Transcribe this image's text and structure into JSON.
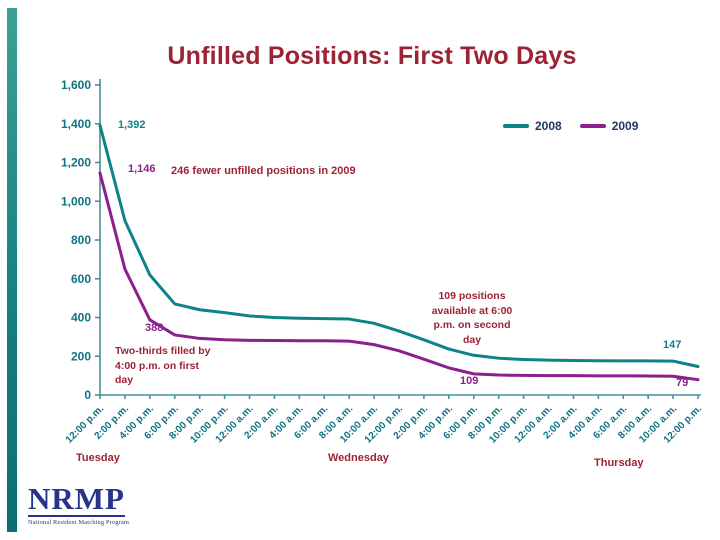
{
  "colors": {
    "series_2008_teal": "#0D8387",
    "series_2009_purple": "#8B1F8B",
    "accent_maroon": "#9D2235",
    "axis_text_teal": "#0E7380",
    "axis_line": "#4A8F98",
    "logo_blue": "#26348C",
    "background": "#FFFFFF"
  },
  "chart_data": {
    "type": "line",
    "title": "Unfilled Positions: First Two Days",
    "legend_position": "top-right",
    "grid": false,
    "ylim": [
      0,
      1600
    ],
    "yticks": [
      "1,600",
      "1,400",
      "1,200",
      "1,000",
      "800",
      "600",
      "400",
      "200",
      "0"
    ],
    "x_labels": [
      "12:00 p.m.",
      "2:00 p.m.",
      "4:00 p.m.",
      "6:00 p.m.",
      "8:00 p.m.",
      "10:00 p.m.",
      "12:00 a.m.",
      "2:00 a.m.",
      "4:00 a.m.",
      "6:00 a.m.",
      "8:00 a.m.",
      "10:00 a.m.",
      "12:00 p.m.",
      "2:00 p.m.",
      "4:00 p.m.",
      "6:00 p.m.",
      "8:00 p.m.",
      "10:00 p.m.",
      "12:00 a.m.",
      "2:00 a.m.",
      "4:00 a.m.",
      "6:00 a.m.",
      "8:00 a.m.",
      "10:00 a.m.",
      "12:00 p.m."
    ],
    "day_labels": [
      "Tuesday",
      "Wednesday",
      "Thursday"
    ],
    "series": [
      {
        "name": "2008",
        "color": "#0D8387",
        "values": [
          1392,
          900,
          620,
          470,
          440,
          425,
          408,
          400,
          396,
          394,
          392,
          370,
          330,
          285,
          237,
          205,
          190,
          183,
          180,
          178,
          177,
          176,
          176,
          175,
          147
        ]
      },
      {
        "name": "2009",
        "color": "#8B1F8B",
        "values": [
          1146,
          650,
          388,
          310,
          292,
          285,
          282,
          281,
          280,
          280,
          278,
          260,
          228,
          185,
          140,
          109,
          103,
          101,
          100,
          100,
          99,
          99,
          98,
          97,
          79
        ]
      }
    ],
    "annotations": {
      "start_2008": "1,392",
      "start_2009": "1,146",
      "fewer_2009": "246 fewer unfilled positions in 2009",
      "four_pm_2009": "388",
      "two_thirds": "Two-thirds filled by 4:00 p.m. on first day",
      "second_day": "109 positions available at 6:00 p.m. on second day",
      "six_pm_2009": "109",
      "end_2008": "147",
      "end_2009": "79"
    }
  },
  "logo": {
    "text": "NRMP",
    "subtext": "National Resident Matching Program"
  }
}
